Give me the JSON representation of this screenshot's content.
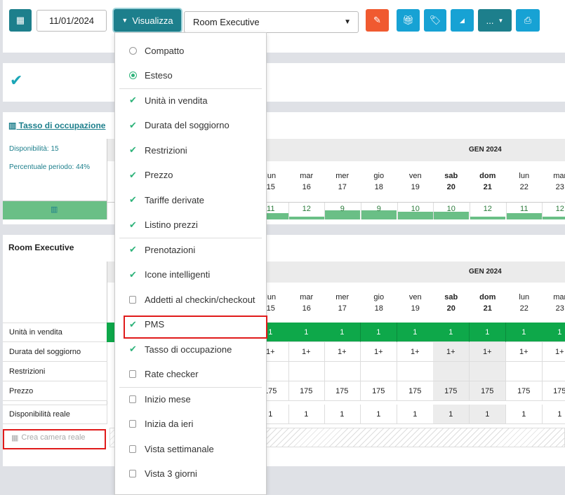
{
  "toolbar": {
    "date": "11/01/2024",
    "view_label": "Visualizza",
    "room_select": "Room Executive",
    "more_label": "..."
  },
  "occupancy": {
    "title": "Tasso di occupazione",
    "availability": "Disponibilità: 15",
    "period_percent": "Percentuale periodo: 44%",
    "month": "GEN 2024",
    "values": [
      11,
      12,
      9,
      9,
      10,
      10,
      12,
      11,
      12
    ]
  },
  "days": [
    {
      "dow": "lun",
      "d": "15",
      "bold": false
    },
    {
      "dow": "mar",
      "d": "16",
      "bold": false
    },
    {
      "dow": "mer",
      "d": "17",
      "bold": false
    },
    {
      "dow": "gio",
      "d": "18",
      "bold": false
    },
    {
      "dow": "ven",
      "d": "19",
      "bold": false
    },
    {
      "dow": "sab",
      "d": "20",
      "bold": true
    },
    {
      "dow": "dom",
      "d": "21",
      "bold": true
    },
    {
      "dow": "lun",
      "d": "22",
      "bold": false
    },
    {
      "dow": "mar",
      "d": "23",
      "bold": false
    }
  ],
  "room": {
    "title": "Room Executive",
    "month": "GEN 2024",
    "rows": [
      {
        "label": "Unità in vendita",
        "value": "1"
      },
      {
        "label": "Durata del soggiorno",
        "value": "1+"
      },
      {
        "label": "Restrizioni",
        "value": ""
      },
      {
        "label": "Prezzo",
        "value": "175"
      },
      {
        "label": "Disponibilità reale",
        "value": "1"
      }
    ],
    "create_room": "Crea camera reale"
  },
  "menu": {
    "items": [
      {
        "label": "Compatto",
        "type": "radio",
        "checked": false
      },
      {
        "label": "Esteso",
        "type": "radio",
        "checked": true
      },
      {
        "label": "Unità in vendita",
        "type": "check",
        "checked": true
      },
      {
        "label": "Durata del soggiorno",
        "type": "check",
        "checked": true
      },
      {
        "label": "Restrizioni",
        "type": "check",
        "checked": true
      },
      {
        "label": "Prezzo",
        "type": "check",
        "checked": true
      },
      {
        "label": "Tariffe derivate",
        "type": "check",
        "checked": true
      },
      {
        "label": "Listino prezzi",
        "type": "check",
        "checked": true
      },
      {
        "label": "Prenotazioni",
        "type": "check",
        "checked": true
      },
      {
        "label": "Icone intelligenti",
        "type": "check",
        "checked": true
      },
      {
        "label": "Addetti al checkin/checkout",
        "type": "check",
        "checked": false
      },
      {
        "label": "PMS",
        "type": "check",
        "checked": true
      },
      {
        "label": "Tasso di occupazione",
        "type": "check",
        "checked": true
      },
      {
        "label": "Rate checker",
        "type": "check",
        "checked": false
      },
      {
        "label": "Inizio mese",
        "type": "check",
        "checked": false
      },
      {
        "label": "Inizia da ieri",
        "type": "check",
        "checked": false
      },
      {
        "label": "Vista settimanale",
        "type": "check",
        "checked": false
      },
      {
        "label": "Vista 3 giorni",
        "type": "check",
        "checked": false
      }
    ]
  },
  "colors": {
    "teal": "#1d7f8c",
    "blue": "#17a2d4",
    "orange": "#f05a30",
    "green": "#0ea84a",
    "bar": "#6abf86",
    "highlight": "#e01b1b"
  }
}
